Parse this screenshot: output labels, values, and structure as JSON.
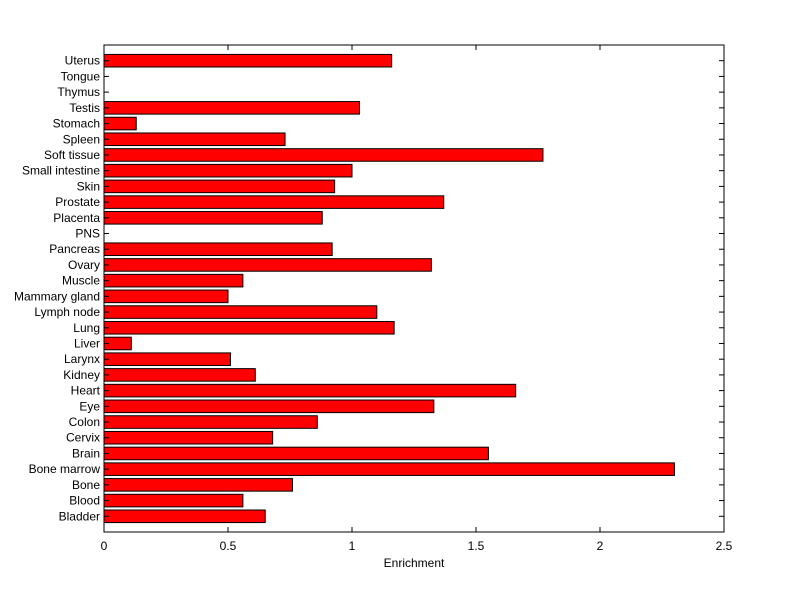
{
  "chart_data": {
    "type": "bar",
    "orientation": "horizontal",
    "title": "",
    "xlabel": "Enrichment",
    "ylabel": "",
    "xlim": [
      0,
      2.5
    ],
    "xticks": [
      0,
      0.5,
      1,
      1.5,
      2,
      2.5
    ],
    "xtick_labels": [
      "0",
      "0.5",
      "1",
      "1.5",
      "2",
      "2.5"
    ],
    "grid": false,
    "bar_color": "#ff0000",
    "bar_edge_color": "#000000",
    "categories": [
      "Bladder",
      "Blood",
      "Bone",
      "Bone marrow",
      "Brain",
      "Cervix",
      "Colon",
      "Eye",
      "Heart",
      "Kidney",
      "Larynx",
      "Liver",
      "Lung",
      "Lymph node",
      "Mammary gland",
      "Muscle",
      "Ovary",
      "Pancreas",
      "PNS",
      "Placenta",
      "Prostate",
      "Skin",
      "Small intestine",
      "Soft tissue",
      "Spleen",
      "Stomach",
      "Testis",
      "Thymus",
      "Tongue",
      "Uterus"
    ],
    "values": [
      0.65,
      0.56,
      0.76,
      2.3,
      1.55,
      0.68,
      0.86,
      1.33,
      1.66,
      0.61,
      0.51,
      0.11,
      1.17,
      1.1,
      0.5,
      0.56,
      1.32,
      0.92,
      0,
      0.88,
      1.37,
      0.93,
      1.0,
      1.77,
      0.73,
      0.13,
      1.03,
      0,
      0,
      1.16
    ]
  }
}
